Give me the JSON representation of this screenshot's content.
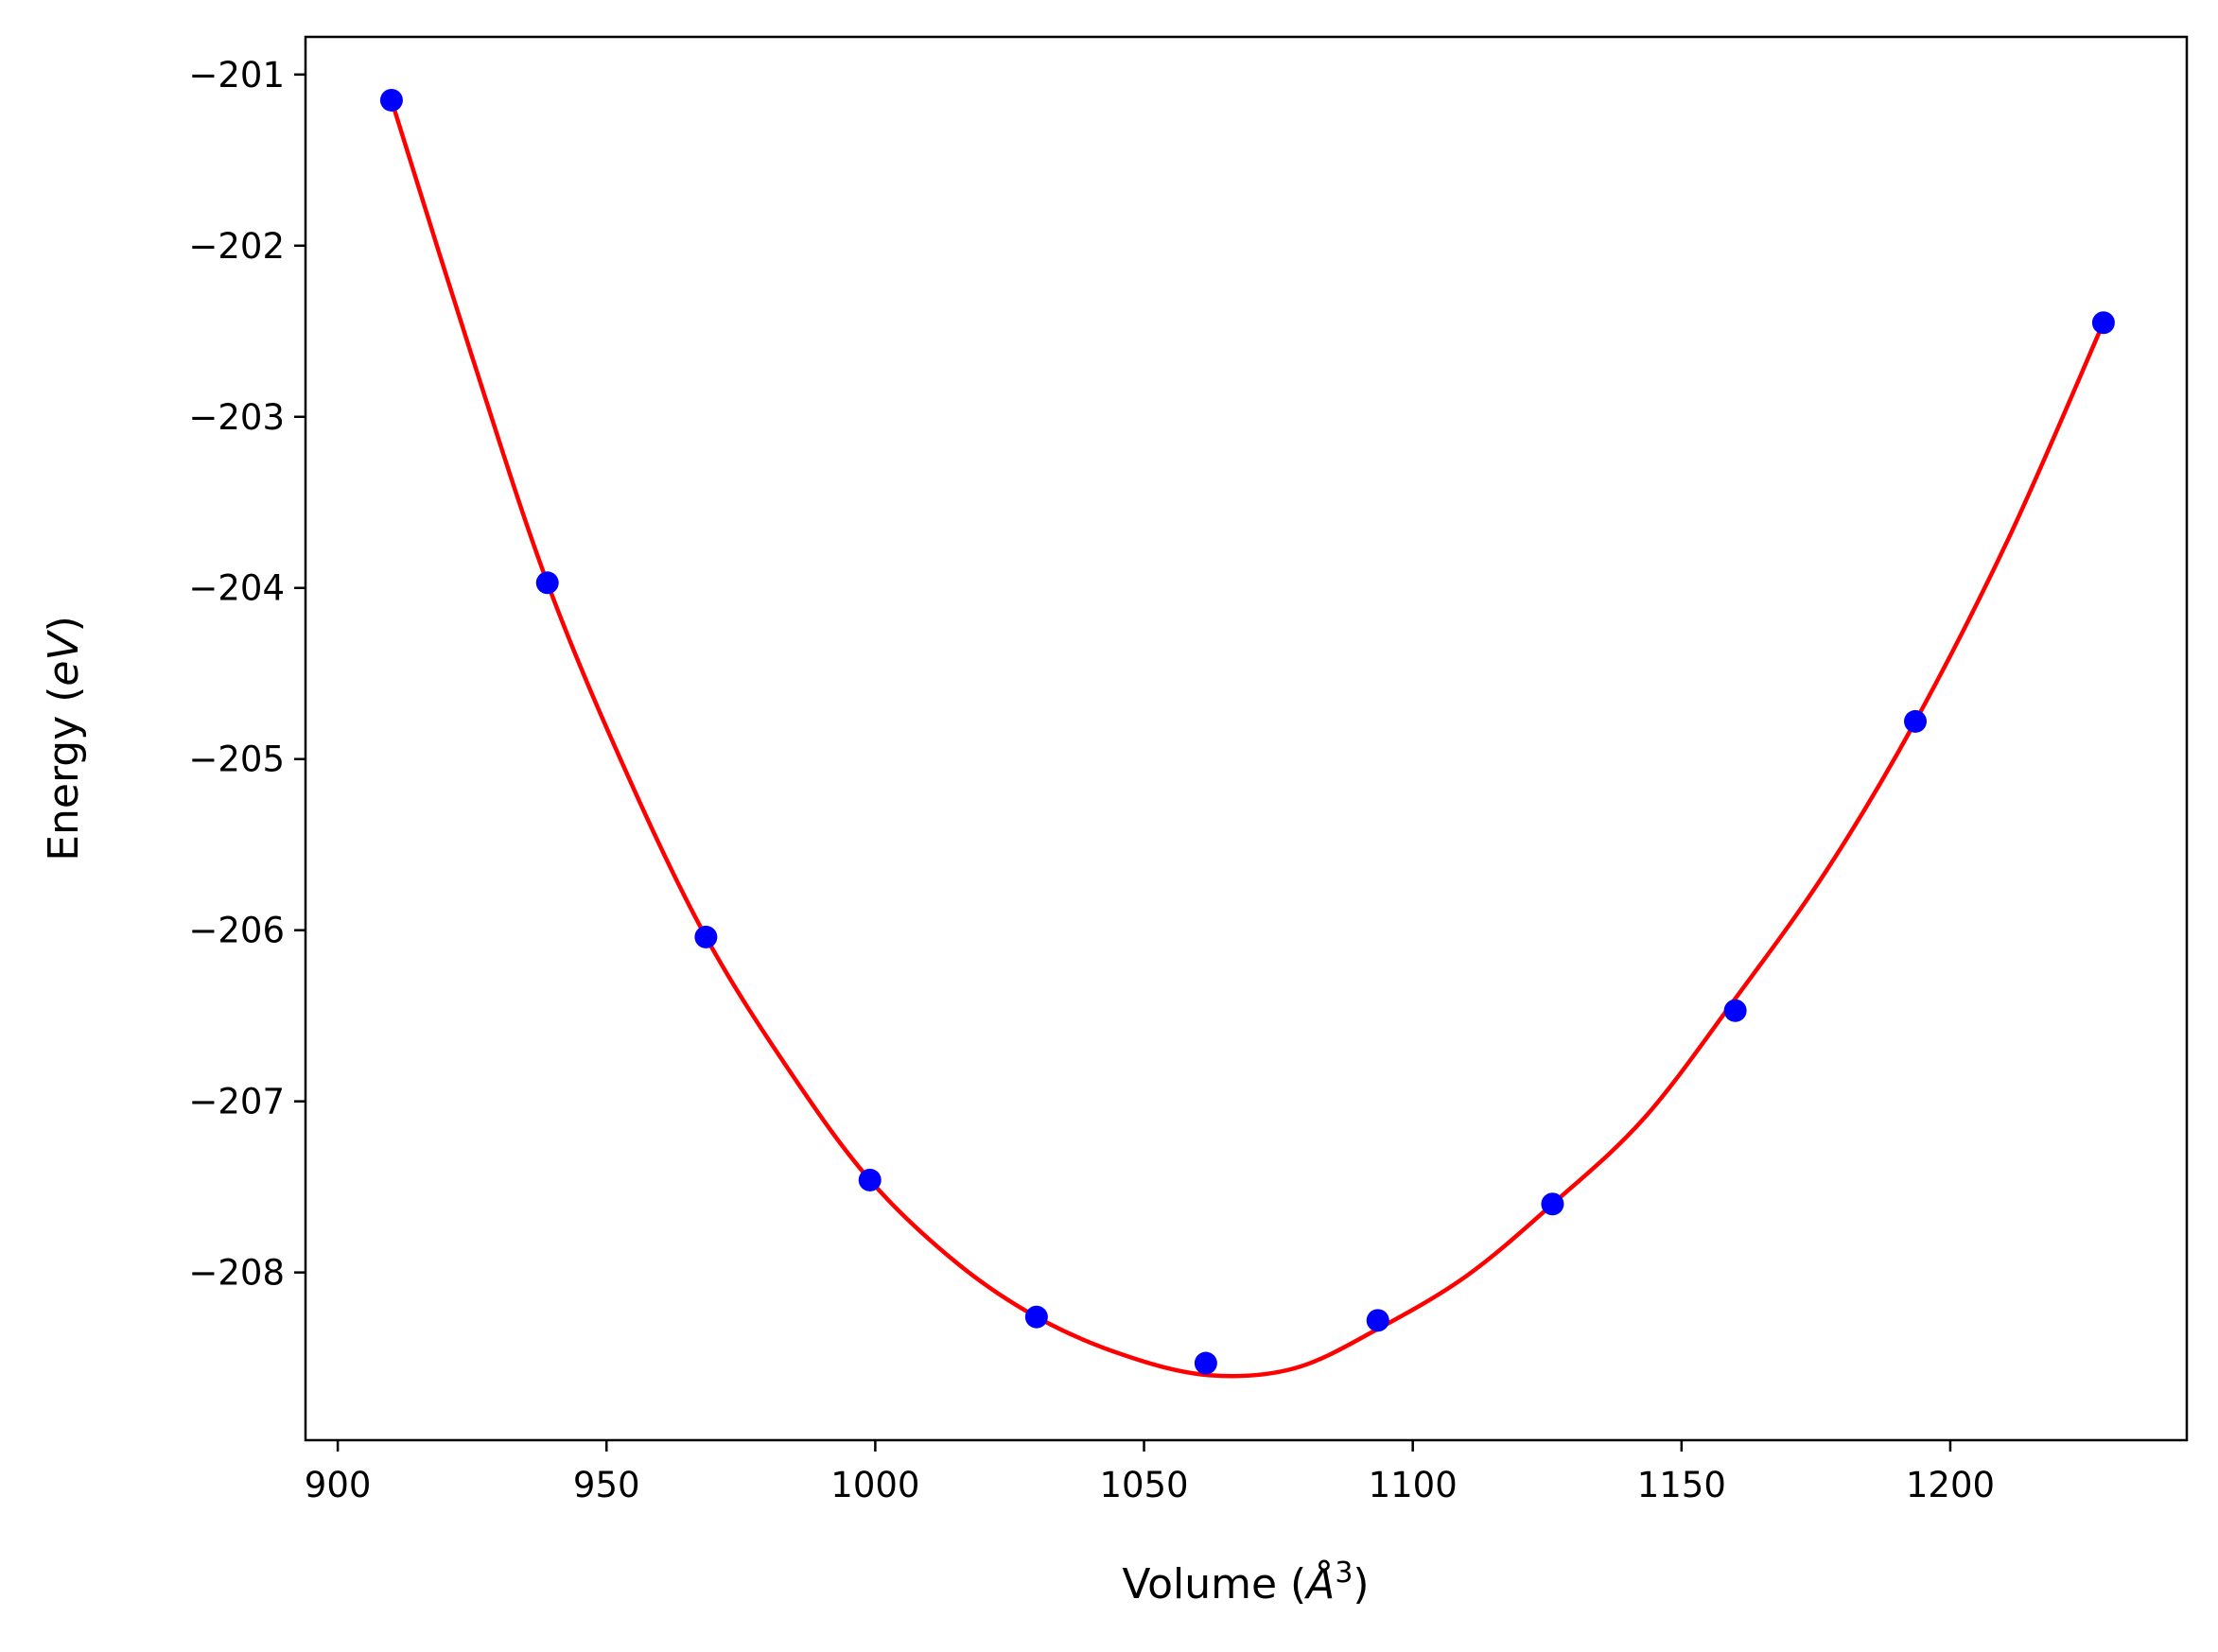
{
  "chart_data": {
    "type": "scatter",
    "xlabel": "Volume (Å^3)",
    "ylabel": "Energy (eV)",
    "xlim": [
      894,
      1244
    ],
    "ylim": [
      -208.98,
      -200.78
    ],
    "xticks": [
      900,
      950,
      1000,
      1050,
      1100,
      1150,
      1200
    ],
    "yticks": [
      -201,
      -202,
      -203,
      -204,
      -205,
      -206,
      -207,
      -208
    ],
    "xtick_labels": [
      "900",
      "950",
      "1000",
      "1050",
      "1100",
      "1150",
      "1200"
    ],
    "ytick_labels": [
      "−201",
      "−202",
      "−203",
      "−204",
      "−205",
      "−206",
      "−207",
      "−208"
    ],
    "grid": false,
    "series": [
      {
        "kind": "points",
        "color": "#0000ff",
        "x": [
          910.0,
          939.0,
          968.5,
          999.0,
          1030.0,
          1061.5,
          1093.5,
          1126.0,
          1160.0,
          1193.5,
          1228.5
        ],
        "y": [
          -201.15,
          -203.97,
          -206.04,
          -207.46,
          -208.26,
          -208.53,
          -208.28,
          -207.6,
          -206.47,
          -204.78,
          -202.45
        ]
      },
      {
        "kind": "fit-line",
        "color": "#ff0000",
        "x": [
          910,
          925,
          939,
          954,
          968.5,
          984,
          999,
          1015,
          1030,
          1046,
          1062,
          1078,
          1093.5,
          1110,
          1126,
          1143,
          1160,
          1177,
          1193.5,
          1211,
          1228.5
        ],
        "y": [
          -201.15,
          -202.65,
          -203.97,
          -205.1,
          -206.04,
          -206.82,
          -207.46,
          -207.94,
          -208.26,
          -208.48,
          -208.6,
          -208.56,
          -208.33,
          -208.02,
          -207.6,
          -207.1,
          -206.4,
          -205.65,
          -204.78,
          -203.7,
          -202.45
        ]
      }
    ]
  }
}
